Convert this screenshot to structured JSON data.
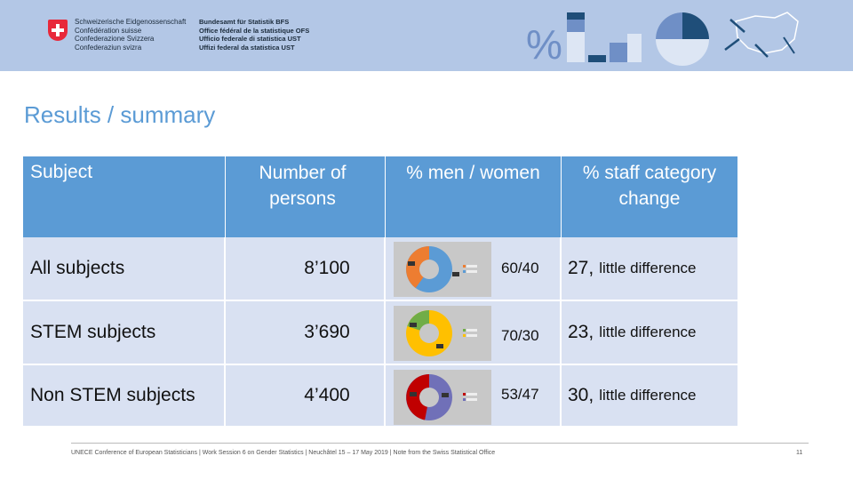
{
  "header": {
    "confederation": [
      "Schweizerische Eidgenossenschaft",
      "Confédération suisse",
      "Confederazione Svizzera",
      "Confederaziun svizra"
    ],
    "office": [
      "Bundesamt für Statistik BFS",
      "Office fédéral de la statistique OFS",
      "Ufficio federale di statistica UST",
      "Uffizi federal da statistica UST"
    ],
    "percent_symbol": "%"
  },
  "title": "Results / summary",
  "table": {
    "headers": {
      "subject": "Subject",
      "persons": "Number of persons",
      "ratio": "% men / women",
      "change": "% staff category change"
    },
    "rows": [
      {
        "subject": "All subjects",
        "persons": "8’100",
        "ratio": "60/40",
        "change_value": "27,",
        "change_note": "little difference"
      },
      {
        "subject": "STEM subjects",
        "persons": "3’690",
        "ratio": "70/30",
        "change_value": "23,",
        "change_note": "little difference"
      },
      {
        "subject": "Non STEM subjects",
        "persons": "4’400",
        "ratio": "53/47",
        "change_value": "30,",
        "change_note": "little difference"
      }
    ],
    "pie_colors": [
      [
        "#ed7d31",
        "#5b9bd5"
      ],
      [
        "#70ad47",
        "#ffc000"
      ],
      [
        "#c00000",
        "#7070b8"
      ]
    ]
  },
  "footer": {
    "text": "UNECE Conference of European Statisticians | Work Session 6 on Gender Statistics | Neuchâtel 15 – 17 May 2019 | Note from the Swiss Statistical Office",
    "page": "11"
  }
}
